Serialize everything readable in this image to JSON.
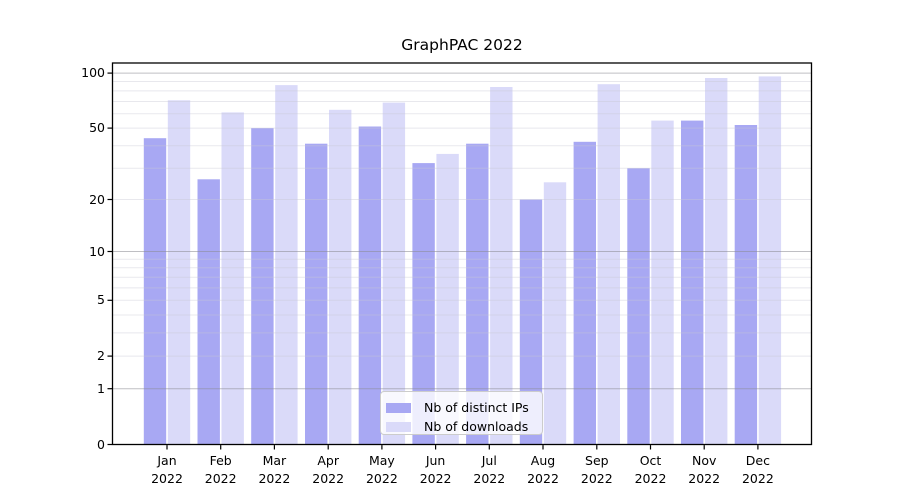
{
  "chart_data": {
    "type": "bar",
    "title": "GraphPAC 2022",
    "categories": [
      "Jan",
      "Feb",
      "Mar",
      "Apr",
      "May",
      "Jun",
      "Jul",
      "Aug",
      "Sep",
      "Oct",
      "Nov",
      "Dec"
    ],
    "x_tick_year": "2022",
    "series": [
      {
        "name": "Nb of distinct IPs",
        "color": "#a8a8f3",
        "values": [
          44,
          26,
          50,
          41,
          51,
          32,
          41,
          20,
          42,
          30,
          55,
          52
        ]
      },
      {
        "name": "Nb of downloads",
        "color": "#dadaf9",
        "values": [
          71,
          61,
          86,
          63,
          69,
          36,
          84,
          25,
          87,
          55,
          94,
          96
        ]
      }
    ],
    "y_axis": {
      "scale": "log1p",
      "tick_labels": [
        "100",
        "50",
        "20",
        "10",
        "5",
        "2",
        "1",
        "0"
      ],
      "ticks": [
        100,
        50,
        20,
        10,
        5,
        2,
        1,
        0
      ],
      "major_gridlines": [
        1,
        10,
        100
      ],
      "minor_gridlines": [
        2,
        3,
        4,
        5,
        6,
        7,
        8,
        9,
        20,
        30,
        40,
        50,
        60,
        70,
        80,
        90
      ],
      "ylim": [
        0,
        113
      ]
    },
    "xlabel": "",
    "ylabel": "",
    "grid": true,
    "legend_position": "lower center",
    "colors": {
      "frame": "#000000",
      "major_grid": "#8a8a92",
      "minor_grid": "#c9c9d4",
      "background": "#ffffff"
    }
  }
}
